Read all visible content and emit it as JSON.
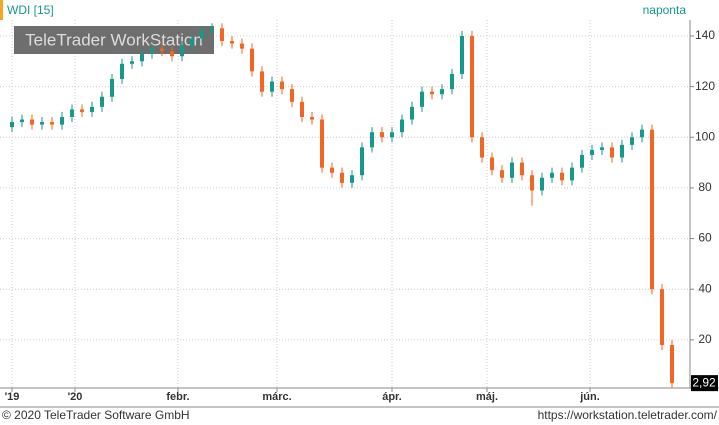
{
  "chart_data": {
    "type": "candlestick",
    "title": "WDI [15]",
    "interval": "naponta",
    "watermark": "TeleTrader WorkStation",
    "last_label": "2,92",
    "footer_left": "© 2020 TeleTrader Software GmbH",
    "footer_right": "https://workstation.teletrader.com/",
    "up_color": "#16998a",
    "down_color": "#f26522",
    "open": [
      104,
      106,
      107,
      105,
      106,
      105,
      108,
      111,
      110,
      112,
      116,
      123,
      129,
      130,
      133,
      135,
      134,
      132,
      136,
      139,
      142,
      143,
      138,
      137,
      135,
      126,
      118,
      122,
      119,
      114,
      108,
      107,
      88,
      86,
      82,
      85,
      96,
      102,
      100,
      102,
      107,
      112,
      118,
      117,
      119,
      125,
      140,
      100,
      92,
      87,
      84,
      90,
      85,
      79,
      84,
      86,
      83,
      88,
      93,
      95,
      96,
      92,
      97,
      100,
      103,
      40,
      18
    ],
    "high": [
      108,
      109,
      109,
      108,
      108,
      110,
      113,
      113,
      114,
      118,
      125,
      131,
      132,
      135,
      137,
      137,
      136,
      138,
      141,
      144,
      145,
      145,
      140,
      139,
      137,
      128,
      124,
      124,
      121,
      116,
      110,
      109,
      90,
      88,
      87,
      98,
      104,
      104,
      104,
      109,
      114,
      120,
      120,
      121,
      127,
      142,
      142,
      102,
      94,
      89,
      92,
      92,
      87,
      86,
      88,
      88,
      90,
      95,
      97,
      98,
      98,
      99,
      102,
      105,
      105,
      42,
      20
    ],
    "low": [
      102,
      104,
      103,
      103,
      103,
      103,
      106,
      108,
      108,
      110,
      114,
      121,
      127,
      128,
      131,
      132,
      130,
      130,
      134,
      137,
      140,
      136,
      135,
      133,
      124,
      116,
      116,
      117,
      112,
      106,
      105,
      86,
      84,
      80,
      80,
      83,
      94,
      98,
      98,
      100,
      105,
      110,
      115,
      115,
      117,
      123,
      98,
      90,
      85,
      82,
      82,
      83,
      73,
      77,
      82,
      81,
      81,
      86,
      91,
      93,
      90,
      90,
      95,
      98,
      38,
      16,
      1
    ],
    "close": [
      106,
      107,
      105,
      106,
      105,
      108,
      111,
      110,
      112,
      116,
      123,
      129,
      130,
      133,
      135,
      134,
      132,
      136,
      139,
      142,
      143,
      138,
      137,
      135,
      126,
      118,
      122,
      119,
      114,
      108,
      107,
      88,
      86,
      82,
      85,
      96,
      102,
      100,
      102,
      107,
      112,
      118,
      117,
      119,
      125,
      140,
      100,
      92,
      87,
      84,
      90,
      85,
      79,
      84,
      86,
      83,
      88,
      93,
      95,
      96,
      92,
      97,
      100,
      103,
      40,
      18,
      2.92
    ],
    "xlim": [
      -1.2,
      67.8
    ],
    "xticks": [
      {
        "value": 0,
        "label": "'19"
      },
      {
        "value": 6.3,
        "label": "'20"
      },
      {
        "value": 16.6,
        "label": "febr."
      },
      {
        "value": 26.5,
        "label": "márc."
      },
      {
        "value": 38,
        "label": "ápr."
      },
      {
        "value": 47.5,
        "label": "máj."
      },
      {
        "value": 57.8,
        "label": "jún."
      }
    ],
    "ylim": [
      1,
      146.3
    ],
    "yticks": [
      20,
      40,
      60,
      80,
      100,
      120,
      140
    ],
    "grid": true
  }
}
